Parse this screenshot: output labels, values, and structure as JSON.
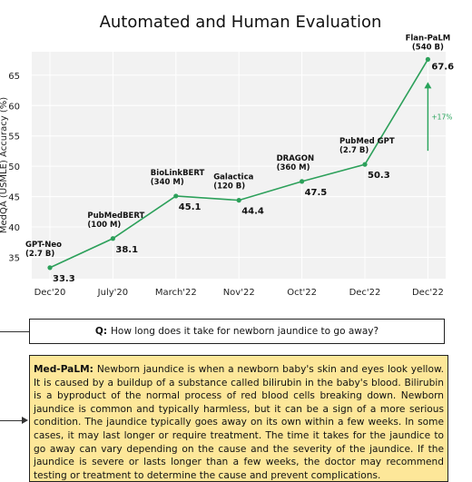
{
  "chart_data": {
    "type": "line",
    "title": "Automated and Human Evaluation",
    "ylabel": "MedQA (USMLE) Accuracy (%)",
    "xlabel": "",
    "categories": [
      "Dec'20",
      "July'20",
      "March'22",
      "Nov'22",
      "Oct'22",
      "Dec'22",
      "Dec'22"
    ],
    "models": [
      {
        "name": "GPT-Neo",
        "size": "(2.7 B)"
      },
      {
        "name": "PubMedBERT",
        "size": "(100 M)"
      },
      {
        "name": "BioLinkBERT",
        "size": "(340 M)"
      },
      {
        "name": "Galactica",
        "size": "(120 B)"
      },
      {
        "name": "DRAGON",
        "size": "(360 M)"
      },
      {
        "name": "PubMed GPT",
        "size": "(2.7 B)"
      },
      {
        "name": "Flan-PaLM",
        "size": "(540 B)"
      }
    ],
    "values": [
      33.3,
      38.1,
      45.1,
      44.4,
      47.5,
      50.3,
      67.6
    ],
    "value_labels": [
      "33.3",
      "38.1",
      "45.1",
      "44.4",
      "47.5",
      "50.3",
      "67.6"
    ],
    "ylim": [
      32,
      70
    ],
    "yticks": [
      35,
      40,
      45,
      50,
      55,
      60,
      65
    ],
    "ytick_labels": [
      "35",
      "40",
      "45",
      "50",
      "55",
      "60",
      "65"
    ],
    "grid": true,
    "line_color": "#2ca05a",
    "plot_background": "#f2f2f2",
    "annotation": {
      "text": "+17%",
      "color": "#27a35a"
    }
  },
  "question": {
    "prefix": "Q:",
    "text": "How long does it take for newborn jaundice to go away?"
  },
  "answer": {
    "prefix": "Med-PaLM:",
    "text": "Newborn jaundice is when a newborn baby's skin and eyes look yellow. It is caused by a buildup of a substance called bilirubin in the baby's blood. Bilirubin is a byproduct of the normal process of red blood cells breaking down. Newborn jaundice is common and typically harmless, but it can be a sign of a more serious condition. The jaundice typically goes away on its own within a few weeks. In some cases, it may last longer or require treatment. The time it takes for the jaundice to go away can vary depending on the cause and the severity of the jaundice. If the jaundice is severe or lasts longer than a few weeks, the doctor may recommend testing or treatment to determine the cause and prevent complications.",
    "background": "#fde799"
  }
}
